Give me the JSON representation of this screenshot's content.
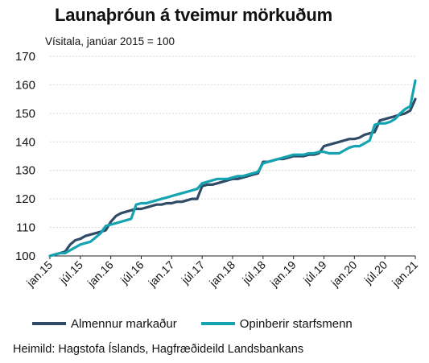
{
  "chart_data": {
    "type": "line",
    "title": "Launaþróun á tveimur mörkuðum",
    "subtitle": "Vísitala, janúar 2015 = 100",
    "ylim": [
      100,
      170
    ],
    "yticks": [
      100,
      110,
      120,
      130,
      140,
      150,
      160,
      170
    ],
    "grid": true,
    "legend": "bottom",
    "x": [
      "jan.15",
      "feb.15",
      "mar.15",
      "apr.15",
      "maí.15",
      "jún.15",
      "júl.15",
      "ágú.15",
      "sep.15",
      "okt.15",
      "nóv.15",
      "des.15",
      "jan.16",
      "feb.16",
      "mar.16",
      "apr.16",
      "maí.16",
      "jún.16",
      "júl.16",
      "ágú.16",
      "sep.16",
      "okt.16",
      "nóv.16",
      "des.16",
      "jan.17",
      "feb.17",
      "mar.17",
      "apr.17",
      "maí.17",
      "jún.17",
      "júl.17",
      "ágú.17",
      "sep.17",
      "okt.17",
      "nóv.17",
      "des.17",
      "jan.18",
      "feb.18",
      "mar.18",
      "apr.18",
      "maí.18",
      "jún.18",
      "júl.18",
      "ágú.18",
      "sep.18",
      "okt.18",
      "nóv.18",
      "des.18",
      "jan.19",
      "feb.19",
      "mar.19",
      "apr.19",
      "maí.19",
      "jún.19",
      "júl.19",
      "ágú.19",
      "sep.19",
      "okt.19",
      "nóv.19",
      "des.19",
      "jan.20",
      "feb.20",
      "mar.20",
      "apr.20",
      "maí.20",
      "jún.20",
      "júl.20",
      "ágú.20",
      "sep.20",
      "okt.20",
      "nóv.20",
      "des.20",
      "jan.21"
    ],
    "xticklabels": [
      "jan.15",
      "júl.15",
      "jan.16",
      "júl.16",
      "jan.17",
      "júl.17",
      "jan.18",
      "júl.18",
      "jan.19",
      "júl.19",
      "jan.20",
      "júl.20",
      "jan.21"
    ],
    "series": [
      {
        "name": "Almennur markaður",
        "color": "#2f4b66",
        "values": [
          100,
          100.5,
          101,
          101.5,
          104,
          105.5,
          106,
          107,
          107.5,
          108,
          108.5,
          109,
          112,
          114,
          115,
          115.5,
          116,
          116.5,
          116.5,
          117,
          117.5,
          118,
          118,
          118.5,
          118.5,
          119,
          119,
          119.5,
          120,
          120,
          124.5,
          125,
          125,
          125.5,
          126,
          126.5,
          127,
          127,
          127.5,
          128,
          128.5,
          129,
          133,
          133,
          133.5,
          134,
          134,
          134.5,
          135,
          135,
          135,
          135.5,
          135.5,
          136,
          138.5,
          139,
          139.5,
          140,
          140.5,
          141,
          141,
          141.5,
          142.5,
          143,
          143.5,
          147.5,
          148,
          148.5,
          149,
          149.5,
          150,
          151,
          155
        ]
      },
      {
        "name": "Opinberir starfsmenn",
        "color": "#14a3b0",
        "values": [
          100,
          100.5,
          101,
          101,
          102,
          103,
          104,
          104.5,
          105,
          106.5,
          108,
          110.5,
          111,
          111.5,
          112,
          112.5,
          113,
          118,
          118.5,
          118.5,
          119,
          119.5,
          120,
          120.5,
          121,
          121.5,
          122,
          122.5,
          123,
          123.5,
          125.5,
          126,
          126.5,
          127,
          127,
          127,
          127.5,
          128,
          128,
          128.5,
          129,
          129.5,
          132.5,
          133,
          133.5,
          134,
          134.5,
          135,
          135.5,
          135.5,
          135.5,
          136,
          136,
          136.5,
          136.5,
          136,
          136,
          136,
          137,
          138,
          138.5,
          138.5,
          139.5,
          140.5,
          146,
          146.5,
          146.5,
          147,
          148,
          150,
          151.5,
          152.5,
          161.5
        ]
      }
    ]
  },
  "source": "Heimild: Hagstofa Íslands, Hagfræðideild Landsbankans"
}
